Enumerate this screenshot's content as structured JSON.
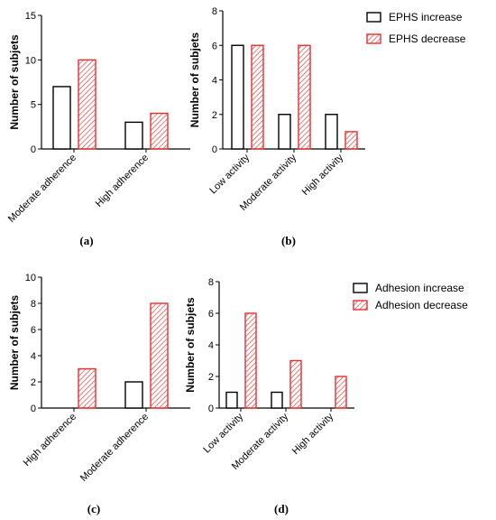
{
  "colors": {
    "increase": "#000000",
    "decrease": "#e8312f",
    "axis": "#000000"
  },
  "legends": {
    "top": [
      "EPHS increase",
      "EPHS decrease"
    ],
    "bottom": [
      "Adhesion increase",
      "Adhesion decrease"
    ]
  },
  "chart_data": [
    {
      "panel": "(a)",
      "type": "bar",
      "ylabel": "Number of subjets",
      "ylim": [
        0,
        15
      ],
      "yticks": [
        0,
        5,
        10,
        15
      ],
      "categories": [
        "Moderate adherence",
        "High adherence"
      ],
      "series": [
        {
          "name": "EPHS increase",
          "values": [
            7,
            3
          ]
        },
        {
          "name": "EPHS decrease",
          "values": [
            10,
            4
          ]
        }
      ]
    },
    {
      "panel": "(b)",
      "type": "bar",
      "ylabel": "Number of subjets",
      "ylim": [
        0,
        8
      ],
      "yticks": [
        0,
        2,
        4,
        6,
        8
      ],
      "categories": [
        "Low activity",
        "Moderate activity",
        "High activity"
      ],
      "series": [
        {
          "name": "EPHS increase",
          "values": [
            6,
            2,
            2
          ]
        },
        {
          "name": "EPHS decrease",
          "values": [
            6,
            6,
            1
          ]
        }
      ]
    },
    {
      "panel": "(c)",
      "type": "bar",
      "ylabel": "Number of subjets",
      "ylim": [
        0,
        10
      ],
      "yticks": [
        0,
        2,
        4,
        6,
        8,
        10
      ],
      "categories": [
        "High adherence",
        "Moderate adherence"
      ],
      "series": [
        {
          "name": "Adhesion increase",
          "values": [
            0,
            2
          ]
        },
        {
          "name": "Adhesion decrease",
          "values": [
            3,
            8
          ]
        }
      ]
    },
    {
      "panel": "(d)",
      "type": "bar",
      "ylabel": "Number of subjets",
      "ylim": [
        0,
        8
      ],
      "yticks": [
        0,
        2,
        4,
        6,
        8
      ],
      "categories": [
        "Low activity",
        "Moderate activity",
        "High activity"
      ],
      "series": [
        {
          "name": "Adhesion increase",
          "values": [
            1,
            1,
            0
          ]
        },
        {
          "name": "Adhesion decrease",
          "values": [
            6,
            3,
            2
          ]
        }
      ]
    }
  ]
}
